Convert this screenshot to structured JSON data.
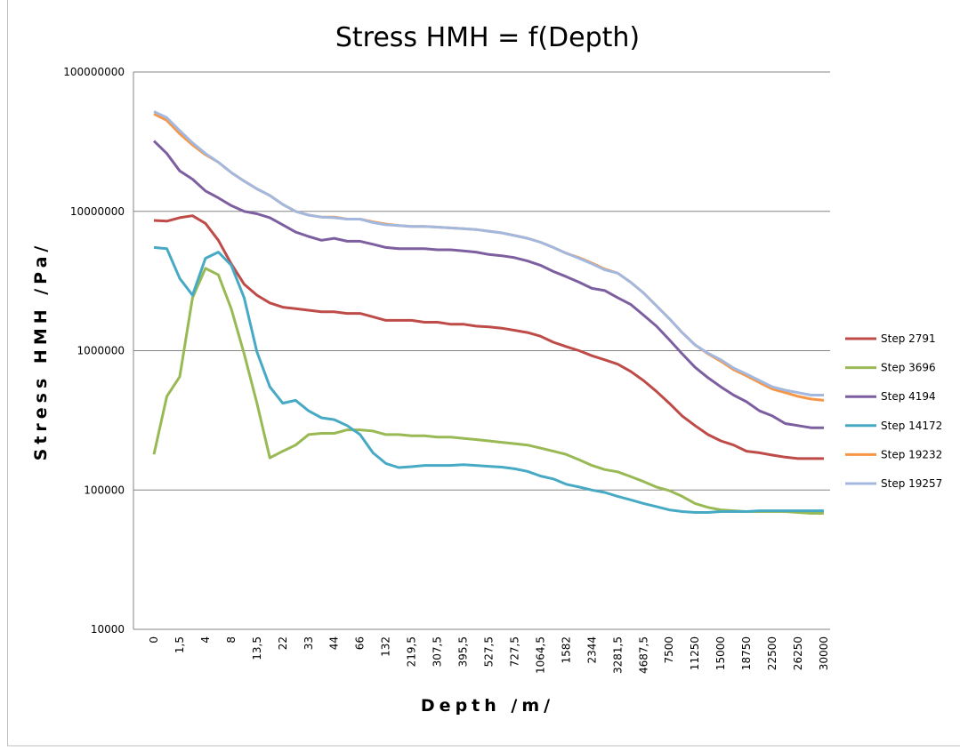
{
  "chart_data": {
    "type": "line",
    "title": "Stress HMH = f(Depth)",
    "x_label": "Depth /m/",
    "y_label": "Stress HMH /Pa/",
    "yscale": "log",
    "ylim": [
      10000,
      100000000
    ],
    "yticks": [
      10000,
      100000,
      1000000,
      10000000,
      100000000
    ],
    "grid": true,
    "legend": "right",
    "categories": [
      "0",
      null,
      "1,5",
      null,
      "4",
      null,
      "8",
      null,
      "13,5",
      null,
      "22",
      null,
      "33",
      null,
      "44",
      null,
      "66",
      null,
      "132",
      null,
      "219,5",
      null,
      "307,5",
      null,
      "395,5",
      null,
      "527,5",
      null,
      "727,5",
      null,
      "1064,5",
      null,
      "1582",
      null,
      "2344",
      null,
      "3281,5",
      null,
      "4687,5",
      null,
      "7500",
      null,
      "11250",
      null,
      "15000",
      null,
      "18750",
      null,
      "22500",
      null,
      "26250",
      null,
      "30000"
    ],
    "series": [
      {
        "name": "Step 2791",
        "color": "#be4b48",
        "values": [
          8600000,
          8500000,
          9000000,
          9300000,
          8200000,
          6200000,
          4200000,
          3000000,
          2500000,
          2200000,
          2050000,
          2000000,
          1950000,
          1900000,
          1900000,
          1850000,
          1850000,
          1750000,
          1650000,
          1650000,
          1650000,
          1600000,
          1600000,
          1550000,
          1550000,
          1500000,
          1480000,
          1450000,
          1400000,
          1350000,
          1270000,
          1150000,
          1070000,
          1000000,
          920000,
          860000,
          800000,
          710000,
          610000,
          510000,
          420000,
          340000,
          290000,
          250000,
          225000,
          210000,
          190000,
          185000,
          178000,
          172000,
          168000,
          168000,
          168000
        ]
      },
      {
        "name": "Step 3696",
        "color": "#98b954",
        "values": [
          180000,
          470000,
          650000,
          2400000,
          3900000,
          3500000,
          2000000,
          950000,
          420000,
          170000,
          190000,
          210000,
          250000,
          255000,
          255000,
          270000,
          270000,
          265000,
          250000,
          250000,
          245000,
          245000,
          240000,
          240000,
          235000,
          230000,
          225000,
          220000,
          215000,
          210000,
          200000,
          190000,
          180000,
          165000,
          150000,
          140000,
          135000,
          125000,
          115000,
          105000,
          99000,
          90000,
          80000,
          75000,
          72000,
          71000,
          70000,
          70000,
          70000,
          70000,
          69000,
          68000,
          68000
        ]
      },
      {
        "name": "Step 4194",
        "color": "#7d5fa0",
        "values": [
          32000000,
          26000000,
          19500000,
          17000000,
          14000000,
          12500000,
          11000000,
          10000000,
          9600000,
          9000000,
          8000000,
          7100000,
          6600000,
          6200000,
          6400000,
          6100000,
          6100000,
          5800000,
          5500000,
          5400000,
          5400000,
          5400000,
          5300000,
          5300000,
          5200000,
          5100000,
          4900000,
          4800000,
          4650000,
          4400000,
          4100000,
          3700000,
          3400000,
          3100000,
          2800000,
          2700000,
          2400000,
          2150000,
          1800000,
          1500000,
          1200000,
          950000,
          760000,
          640000,
          550000,
          480000,
          430000,
          370000,
          340000,
          300000,
          290000,
          280000,
          280000
        ]
      },
      {
        "name": "Step 14172",
        "color": "#46aac5",
        "values": [
          5500000,
          5400000,
          3300000,
          2500000,
          4600000,
          5100000,
          4100000,
          2400000,
          980000,
          550000,
          420000,
          440000,
          370000,
          330000,
          320000,
          290000,
          250000,
          185000,
          155000,
          145000,
          147000,
          150000,
          150000,
          150000,
          152000,
          150000,
          148000,
          146000,
          142000,
          136000,
          126000,
          120000,
          110000,
          105000,
          100000,
          96000,
          90000,
          85000,
          80000,
          76000,
          72000,
          70000,
          69000,
          69000,
          70000,
          70000,
          70000,
          71000,
          71000,
          71000,
          71000,
          71000,
          71000
        ]
      },
      {
        "name": "Step 19232",
        "color": "#f79646",
        "values": [
          50000000,
          45000000,
          36000000,
          30000000,
          25500000,
          22500000,
          19000000,
          16500000,
          14500000,
          13000000,
          11200000,
          10000000,
          9400000,
          9100000,
          9100000,
          8800000,
          8800000,
          8400000,
          8100000,
          7900000,
          7800000,
          7800000,
          7700000,
          7600000,
          7500000,
          7400000,
          7200000,
          7000000,
          6700000,
          6400000,
          6000000,
          5500000,
          5000000,
          4650000,
          4250000,
          3850000,
          3600000,
          3100000,
          2600000,
          2100000,
          1700000,
          1350000,
          1100000,
          950000,
          840000,
          730000,
          660000,
          590000,
          530000,
          500000,
          470000,
          450000,
          440000
        ]
      },
      {
        "name": "Step 19257",
        "color": "#a3b8de",
        "values": [
          52000000,
          47000000,
          38000000,
          31000000,
          26000000,
          22500000,
          19000000,
          16500000,
          14500000,
          13000000,
          11200000,
          10000000,
          9400000,
          9100000,
          9000000,
          8800000,
          8800000,
          8300000,
          8000000,
          7900000,
          7800000,
          7800000,
          7700000,
          7600000,
          7500000,
          7400000,
          7200000,
          7000000,
          6700000,
          6400000,
          6000000,
          5500000,
          5000000,
          4600000,
          4200000,
          3800000,
          3600000,
          3100000,
          2600000,
          2100000,
          1700000,
          1350000,
          1100000,
          960000,
          860000,
          750000,
          680000,
          610000,
          550000,
          520000,
          500000,
          480000,
          480000
        ]
      }
    ]
  }
}
